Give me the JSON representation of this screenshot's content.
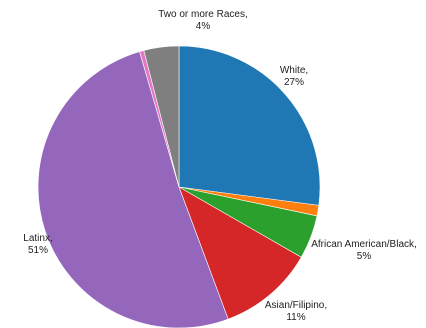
{
  "chart_data": {
    "type": "pie",
    "start": "12 o'clock",
    "direction": "clockwise",
    "slices": [
      {
        "name": "White",
        "value": 27,
        "color": "#1f77b4",
        "label": [
          "White,",
          "27%"
        ]
      },
      {
        "name": "",
        "value": 1.2,
        "color": "#ff7f0e",
        "label": null
      },
      {
        "name": "African American/Black",
        "value": 5,
        "color": "#2ca02c",
        "label": [
          "African American/Black,",
          "5%"
        ]
      },
      {
        "name": "Asian/Filipino",
        "value": 11,
        "color": "#d62728",
        "label": [
          "Asian/Filipino,",
          "11%"
        ]
      },
      {
        "name": "Latinx",
        "value": 51,
        "color": "#9467bd",
        "label": [
          "Latinx,",
          "51%"
        ]
      },
      {
        "name": "",
        "value": 0.5,
        "color": "#e377c2",
        "label": null
      },
      {
        "name": "Two or more Races",
        "value": 4,
        "color": "#7f7f7f",
        "label": [
          "Two or more Races,",
          "4%"
        ]
      }
    ]
  }
}
